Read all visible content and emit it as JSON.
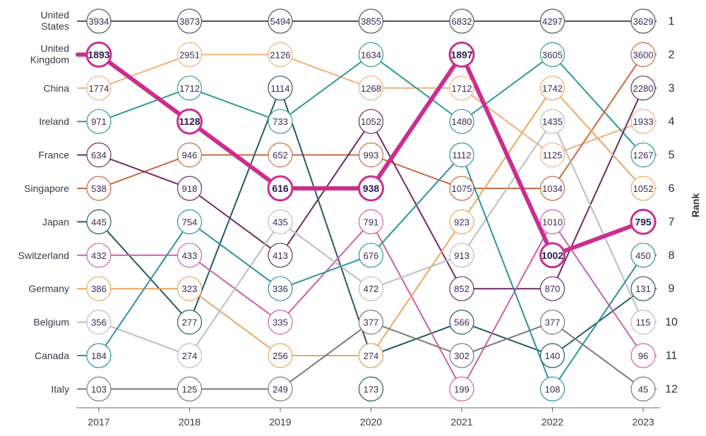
{
  "chart_data": {
    "type": "line",
    "chart_subtype": "bump",
    "years": [
      "2017",
      "2018",
      "2019",
      "2020",
      "2021",
      "2022",
      "2023"
    ],
    "ylabel": "Rank",
    "ranks": [
      "1",
      "2",
      "3",
      "4",
      "5",
      "6",
      "7",
      "8",
      "9",
      "10",
      "11",
      "12"
    ],
    "highlight_series": "United Kingdom",
    "row_labels": [
      {
        "rank": 1,
        "text": "United States",
        "lines": [
          "United",
          "States"
        ]
      },
      {
        "rank": 2,
        "text": "United Kingdom",
        "lines": [
          "United",
          "Kingdom"
        ]
      },
      {
        "rank": 3,
        "text": "China",
        "lines": [
          "China"
        ]
      },
      {
        "rank": 4,
        "text": "Ireland",
        "lines": [
          "Ireland"
        ]
      },
      {
        "rank": 5,
        "text": "France",
        "lines": [
          "France"
        ]
      },
      {
        "rank": 6,
        "text": "Singapore",
        "lines": [
          "Singapore"
        ]
      },
      {
        "rank": 7,
        "text": "Japan",
        "lines": [
          "Japan"
        ]
      },
      {
        "rank": 8,
        "text": "Switzerland",
        "lines": [
          "Switzerland"
        ]
      },
      {
        "rank": 9,
        "text": "Germany",
        "lines": [
          "Germany"
        ]
      },
      {
        "rank": 10,
        "text": "Belgium",
        "lines": [
          "Belgium"
        ]
      },
      {
        "rank": 11,
        "text": "Canada",
        "lines": [
          "Canada"
        ]
      },
      {
        "rank": 12,
        "text": "Italy",
        "lines": [
          "Italy"
        ]
      }
    ],
    "series": [
      {
        "name": "United States",
        "color": "#555560",
        "ranks": [
          1,
          1,
          1,
          1,
          1,
          1,
          1
        ],
        "values": [
          "3934",
          "3873",
          "5494",
          "3855",
          "6832",
          "4297",
          "3629"
        ]
      },
      {
        "name": "United Kingdom",
        "color": "#cc2e8f",
        "ranks": [
          2,
          4,
          6,
          6,
          2,
          8,
          7
        ],
        "values": [
          "1893",
          "1128",
          "616",
          "938",
          "1897",
          "1002",
          "795"
        ]
      },
      {
        "name": "China",
        "color": "#f0b27a",
        "ranks": [
          3,
          2,
          2,
          3,
          3,
          5,
          4
        ],
        "values": [
          "1774",
          "2951",
          "2126",
          "1268",
          "1712",
          "1125",
          "1933"
        ]
      },
      {
        "name": "Ireland",
        "color": "#2e9a9a",
        "ranks": [
          4,
          3,
          4,
          2,
          4,
          2,
          5
        ],
        "values": [
          "971",
          "1712",
          "733",
          "1634",
          "1480",
          "3605",
          "1267"
        ]
      },
      {
        "name": "France",
        "color": "#c96a3d",
        "ranks": [
          6,
          5,
          5,
          5,
          6,
          6,
          2
        ],
        "values": [
          "538",
          "946",
          "652",
          "993",
          "1075",
          "1034",
          "3600"
        ]
      },
      {
        "name": "Singapore",
        "color": "#6e2a66",
        "ranks": [
          5,
          6,
          8,
          4,
          9,
          9,
          3
        ],
        "values": [
          "634",
          "918",
          "413",
          "1052",
          "852",
          "870",
          "2280"
        ]
      },
      {
        "name": "Japan",
        "color": "#245a68",
        "ranks": [
          7,
          10,
          3,
          11,
          10,
          11,
          9
        ],
        "values": [
          "445",
          "277",
          "1114",
          "274",
          "566",
          "140",
          "131"
        ]
      },
      {
        "name": "Switzerland",
        "color": "#cf5fa8",
        "ranks": [
          8,
          8,
          10,
          7,
          12,
          7,
          11
        ],
        "values": [
          "432",
          "433",
          "335",
          "791",
          "199",
          "1010",
          "96"
        ]
      },
      {
        "name": "Germany",
        "color": "#eda75f",
        "ranks": [
          9,
          9,
          11,
          11,
          7,
          3,
          6
        ],
        "values": [
          "386",
          "323",
          "256",
          "274",
          "923",
          "1742",
          "1052"
        ]
      },
      {
        "name": "Belgium",
        "color": "#bdbdbd",
        "ranks": [
          10,
          11,
          7,
          9,
          8,
          4,
          10
        ],
        "values": [
          "356",
          "274",
          "435",
          "472",
          "913",
          "1435",
          "115"
        ]
      },
      {
        "name": "Canada",
        "color": "#2b93a3",
        "ranks": [
          11,
          7,
          9,
          8,
          5,
          12,
          8
        ],
        "values": [
          "184",
          "754",
          "336",
          "676",
          "1112",
          "108",
          "450"
        ]
      },
      {
        "name": "Italy",
        "color": "#7a7a7a",
        "ranks": [
          12,
          12,
          12,
          10,
          11,
          10,
          12
        ],
        "values": [
          "103",
          "125",
          "249",
          "377",
          "302",
          "377",
          "45"
        ]
      },
      {
        "name": "Japan-2020-cont",
        "color": "#245a68",
        "ranks": [
          null,
          null,
          null,
          12,
          null,
          null,
          null
        ],
        "values": [
          null,
          null,
          null,
          "173",
          null,
          null,
          null
        ]
      }
    ]
  }
}
